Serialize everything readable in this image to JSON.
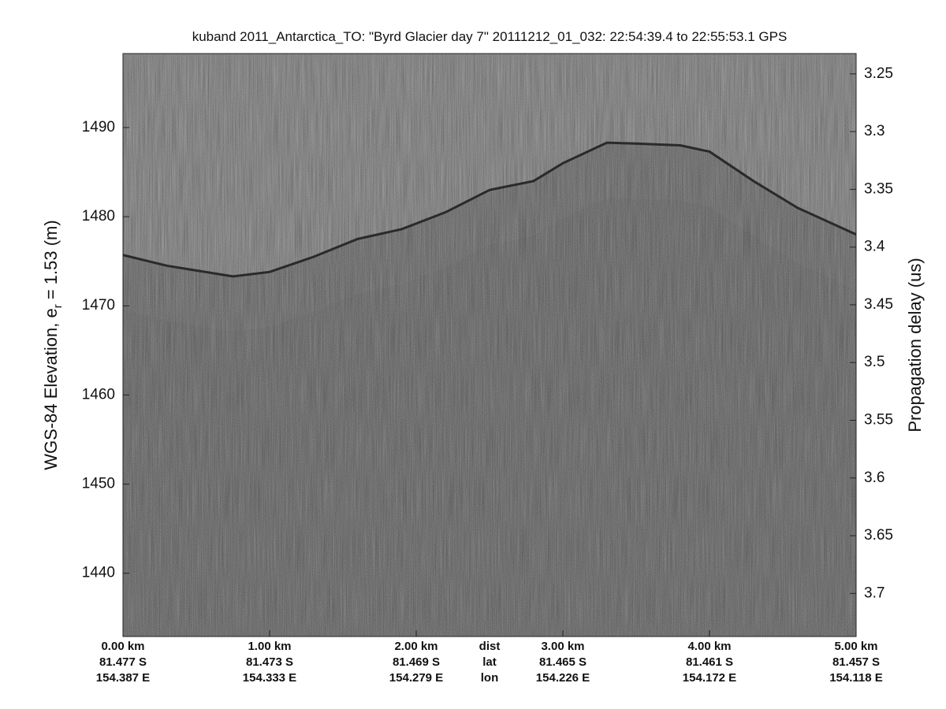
{
  "chart_data": {
    "type": "echogram",
    "title": "kuband 2011_Antarctica_TO: \"Byrd Glacier day 7\"  20111212_01_032: 22:54:39.4 to 22:55:53.1 GPS",
    "ylabel": "WGS-84 Elevation, e",
    "ylabel_sub": "r",
    "ylabel_end": " = 1.53 (m)",
    "y2label": "Propagation delay (us)",
    "xlim": [
      0,
      5
    ],
    "ylim": [
      1432.9,
      1498.3
    ],
    "y2lim": [
      3.2324,
      3.7373
    ],
    "xticks": [
      {
        "value": 0,
        "label": "0.00 km"
      },
      {
        "value": 1,
        "label": "1.00 km"
      },
      {
        "value": 2,
        "label": "2.00 km"
      },
      {
        "value": 3,
        "label": "3.00 km"
      },
      {
        "value": 4,
        "label": "4.00 km"
      },
      {
        "value": 5,
        "label": "5.00 km"
      }
    ],
    "lat_labels": [
      "81.477 S",
      "81.473 S",
      "81.469 S",
      "81.465 S",
      "81.461 S",
      "81.457 S"
    ],
    "lon_labels": [
      "154.387 E",
      "154.333 E",
      "154.279 E",
      "154.226 E",
      "154.172 E",
      "154.118 E"
    ],
    "row_labels": [
      "dist",
      "lat",
      "lon"
    ],
    "yticks": [
      1440,
      1450,
      1460,
      1470,
      1480,
      1490
    ],
    "y2ticks": [
      3.25,
      3.3,
      3.35,
      3.4,
      3.45,
      3.5,
      3.55,
      3.6,
      3.65,
      3.7
    ],
    "x": [
      0,
      0.3,
      0.75,
      1.0,
      1.3,
      1.6,
      1.9,
      2.2,
      2.5,
      2.8,
      3.0,
      3.3,
      3.5,
      3.8,
      4.0,
      4.3,
      4.6,
      5.0
    ],
    "values": [
      1475.7,
      1474.5,
      1473.3,
      1473.8,
      1475.5,
      1477.5,
      1478.6,
      1480.5,
      1483,
      1484,
      1486,
      1488.3,
      1488.2,
      1488,
      1487.3,
      1484,
      1481,
      1478
    ]
  }
}
